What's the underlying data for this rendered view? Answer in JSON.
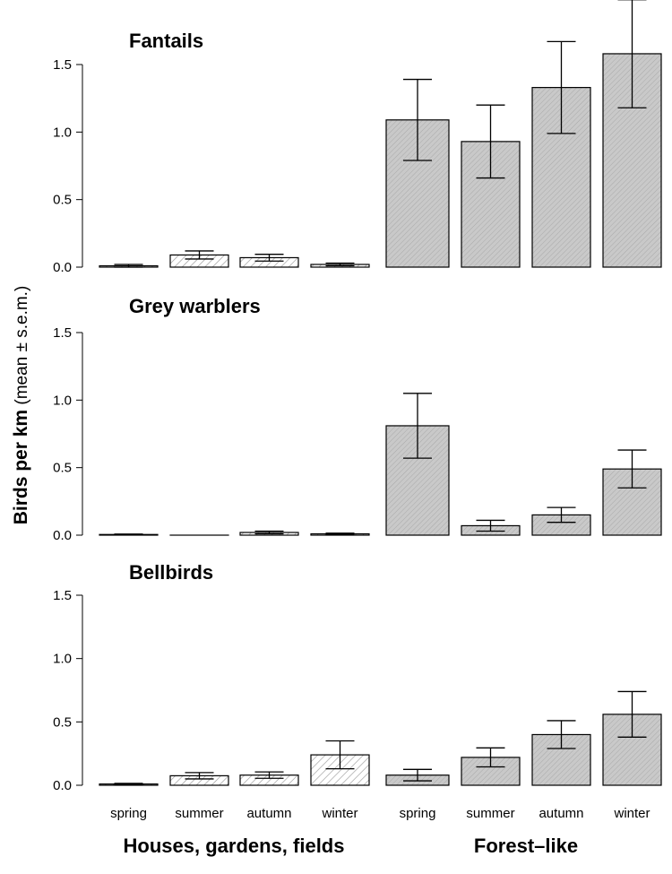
{
  "ylabel": {
    "bold": "Birds per km",
    "normal": " (mean ± s.e.m.)"
  },
  "group_labels": [
    "Houses, gardens, fields",
    "Forest–like"
  ],
  "categories": [
    "spring",
    "summer",
    "autumn",
    "winter"
  ],
  "colors": {
    "open_fill": "#c8c8c8",
    "forest_fill": "#c8c8c8",
    "stroke": "#000000"
  },
  "chart_data": [
    {
      "type": "bar",
      "title": "Fantails",
      "ylim": [
        0,
        1.5
      ],
      "yticks": [
        "0.0",
        "0.5",
        "1.0",
        "1.5"
      ],
      "categories": [
        "spring",
        "summer",
        "autumn",
        "winter"
      ],
      "series": [
        {
          "name": "Houses, gardens, fields",
          "values": [
            0.01,
            0.09,
            0.07,
            0.02
          ],
          "sem": [
            0.01,
            0.03,
            0.025,
            0.01
          ]
        },
        {
          "name": "Forest–like",
          "values": [
            1.09,
            0.93,
            1.33,
            1.58
          ],
          "sem": [
            0.3,
            0.27,
            0.34,
            0.4
          ]
        }
      ]
    },
    {
      "type": "bar",
      "title": "Grey warblers",
      "ylim": [
        0,
        1.5
      ],
      "yticks": [
        "0.0",
        "0.5",
        "1.0",
        "1.5"
      ],
      "categories": [
        "spring",
        "summer",
        "autumn",
        "winter"
      ],
      "series": [
        {
          "name": "Houses, gardens, fields",
          "values": [
            0.005,
            0.0,
            0.02,
            0.01
          ],
          "sem": [
            0.003,
            0.0,
            0.01,
            0.005
          ]
        },
        {
          "name": "Forest–like",
          "values": [
            0.81,
            0.07,
            0.15,
            0.49
          ],
          "sem": [
            0.24,
            0.04,
            0.055,
            0.14
          ]
        }
      ]
    },
    {
      "type": "bar",
      "title": "Bellbirds",
      "ylim": [
        0,
        1.5
      ],
      "yticks": [
        "0.0",
        "0.5",
        "1.0",
        "1.5"
      ],
      "categories": [
        "spring",
        "summer",
        "autumn",
        "winter"
      ],
      "series": [
        {
          "name": "Houses, gardens, fields",
          "values": [
            0.01,
            0.075,
            0.08,
            0.24
          ],
          "sem": [
            0.005,
            0.025,
            0.025,
            0.11
          ]
        },
        {
          "name": "Forest–like",
          "values": [
            0.08,
            0.22,
            0.4,
            0.56
          ],
          "sem": [
            0.045,
            0.075,
            0.11,
            0.18
          ]
        }
      ]
    }
  ]
}
